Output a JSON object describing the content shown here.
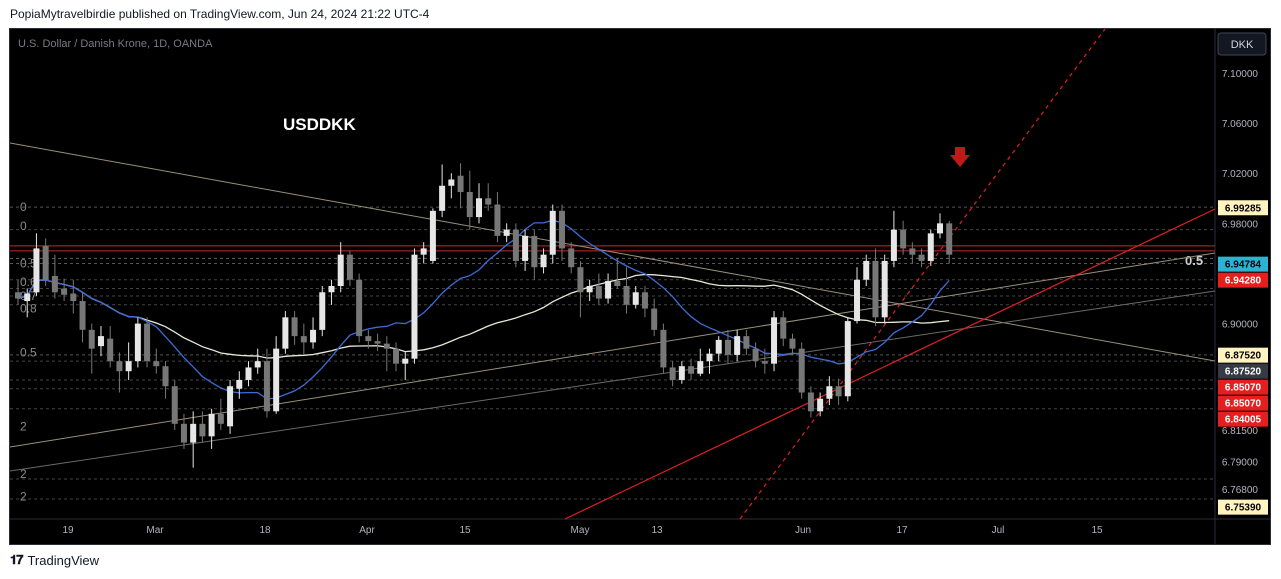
{
  "header": {
    "published_line": "PopiaMytravelbirdie published on TradingView.com, Jun 24, 2024 21:22 UTC-4"
  },
  "footer": {
    "brand": "TradingView"
  },
  "chart_data": {
    "type": "candlestick",
    "symbol_line": "U.S. Dollar / Danish Krone, 1D, OANDA",
    "annotation": "USDDKK",
    "currency_button": "DKK",
    "y_ticks": [
      "7.10000",
      "7.06000",
      "7.02000",
      "6.98000",
      "6.90000",
      "6.81500",
      "6.79000",
      "6.76800"
    ],
    "y_tick_values": [
      7.1,
      7.06,
      7.02,
      6.98,
      6.9,
      6.815,
      6.79,
      6.768
    ],
    "x_ticks": [
      "19",
      "Mar",
      "18",
      "Apr",
      "15",
      "May",
      "13",
      "Jun",
      "17",
      "Jul",
      "15"
    ],
    "price_tags": [
      {
        "label": "6.99285",
        "value": 6.99285,
        "bg": "#fff3c0",
        "fg": "#000000"
      },
      {
        "label": "6.94784",
        "value": 6.94784,
        "bg": "#2bb3d1",
        "fg": "#000000"
      },
      {
        "label": "6.94280",
        "value": 6.9428,
        "bg": "#e51f1f",
        "fg": "#ffffff"
      },
      {
        "label": "6.87520",
        "value": 6.8752,
        "bg": "#fff3c0",
        "fg": "#000000"
      },
      {
        "label": "6.87520",
        "value": 6.8752,
        "bg": "#363a45",
        "fg": "#ffffff"
      },
      {
        "label": "6.85070",
        "value": 6.8507,
        "bg": "#e51f1f",
        "fg": "#ffffff"
      },
      {
        "label": "6.85070",
        "value": 6.8507,
        "bg": "#e51f1f",
        "fg": "#ffffff"
      },
      {
        "label": "6.84005",
        "value": 6.84005,
        "bg": "#e51f1f",
        "fg": "#ffffff"
      },
      {
        "label": "6.75390",
        "value": 6.7539,
        "bg": "#fff3c0",
        "fg": "#000000"
      }
    ],
    "fib_labels_left": [
      "0",
      "0",
      "0.5",
      "0.6",
      "0.7",
      "0.8",
      "0.5",
      "2",
      "2",
      "2"
    ],
    "fib_label_right": "0.5",
    "candles": [
      {
        "o": 6.925,
        "h": 6.935,
        "l": 6.915,
        "c": 6.92
      },
      {
        "o": 6.918,
        "h": 6.928,
        "l": 6.905,
        "c": 6.924
      },
      {
        "o": 6.925,
        "h": 6.972,
        "l": 6.922,
        "c": 6.96
      },
      {
        "o": 6.962,
        "h": 6.968,
        "l": 6.93,
        "c": 6.935
      },
      {
        "o": 6.938,
        "h": 6.955,
        "l": 6.92,
        "c": 6.925
      },
      {
        "o": 6.928,
        "h": 6.936,
        "l": 6.918,
        "c": 6.923
      },
      {
        "o": 6.924,
        "h": 6.935,
        "l": 6.908,
        "c": 6.918
      },
      {
        "o": 6.918,
        "h": 6.925,
        "l": 6.885,
        "c": 6.895
      },
      {
        "o": 6.895,
        "h": 6.9,
        "l": 6.86,
        "c": 6.88
      },
      {
        "o": 6.882,
        "h": 6.898,
        "l": 6.874,
        "c": 6.89
      },
      {
        "o": 6.888,
        "h": 6.898,
        "l": 6.865,
        "c": 6.87
      },
      {
        "o": 6.87,
        "h": 6.877,
        "l": 6.845,
        "c": 6.862
      },
      {
        "o": 6.862,
        "h": 6.885,
        "l": 6.855,
        "c": 6.87
      },
      {
        "o": 6.87,
        "h": 6.905,
        "l": 6.865,
        "c": 6.9
      },
      {
        "o": 6.9,
        "h": 6.905,
        "l": 6.865,
        "c": 6.87
      },
      {
        "o": 6.87,
        "h": 6.88,
        "l": 6.86,
        "c": 6.866
      },
      {
        "o": 6.866,
        "h": 6.87,
        "l": 6.84,
        "c": 6.85
      },
      {
        "o": 6.85,
        "h": 6.855,
        "l": 6.815,
        "c": 6.82
      },
      {
        "o": 6.82,
        "h": 6.828,
        "l": 6.8,
        "c": 6.805
      },
      {
        "o": 6.805,
        "h": 6.83,
        "l": 6.785,
        "c": 6.82
      },
      {
        "o": 6.82,
        "h": 6.83,
        "l": 6.805,
        "c": 6.81
      },
      {
        "o": 6.81,
        "h": 6.832,
        "l": 6.8,
        "c": 6.828
      },
      {
        "o": 6.828,
        "h": 6.84,
        "l": 6.815,
        "c": 6.82
      },
      {
        "o": 6.818,
        "h": 6.855,
        "l": 6.812,
        "c": 6.85
      },
      {
        "o": 6.848,
        "h": 6.862,
        "l": 6.84,
        "c": 6.855
      },
      {
        "o": 6.855,
        "h": 6.87,
        "l": 6.85,
        "c": 6.865
      },
      {
        "o": 6.865,
        "h": 6.88,
        "l": 6.86,
        "c": 6.87
      },
      {
        "o": 6.87,
        "h": 6.88,
        "l": 6.825,
        "c": 6.83
      },
      {
        "o": 6.83,
        "h": 6.89,
        "l": 6.828,
        "c": 6.88
      },
      {
        "o": 6.88,
        "h": 6.91,
        "l": 6.876,
        "c": 6.905
      },
      {
        "o": 6.905,
        "h": 6.91,
        "l": 6.883,
        "c": 6.89
      },
      {
        "o": 6.89,
        "h": 6.9,
        "l": 6.875,
        "c": 6.885
      },
      {
        "o": 6.885,
        "h": 6.905,
        "l": 6.88,
        "c": 6.895
      },
      {
        "o": 6.895,
        "h": 6.93,
        "l": 6.89,
        "c": 6.925
      },
      {
        "o": 6.925,
        "h": 6.935,
        "l": 6.915,
        "c": 6.93
      },
      {
        "o": 6.93,
        "h": 6.965,
        "l": 6.925,
        "c": 6.955
      },
      {
        "o": 6.955,
        "h": 6.958,
        "l": 6.93,
        "c": 6.935
      },
      {
        "o": 6.935,
        "h": 6.94,
        "l": 6.885,
        "c": 6.89
      },
      {
        "o": 6.89,
        "h": 6.895,
        "l": 6.88,
        "c": 6.886
      },
      {
        "o": 6.886,
        "h": 6.892,
        "l": 6.878,
        "c": 6.884
      },
      {
        "o": 6.884,
        "h": 6.89,
        "l": 6.862,
        "c": 6.88
      },
      {
        "o": 6.88,
        "h": 6.885,
        "l": 6.862,
        "c": 6.868
      },
      {
        "o": 6.868,
        "h": 6.878,
        "l": 6.855,
        "c": 6.872
      },
      {
        "o": 6.872,
        "h": 6.96,
        "l": 6.868,
        "c": 6.955
      },
      {
        "o": 6.955,
        "h": 6.965,
        "l": 6.948,
        "c": 6.96
      },
      {
        "o": 6.95,
        "h": 6.992,
        "l": 6.948,
        "c": 6.99
      },
      {
        "o": 6.99,
        "h": 7.027,
        "l": 6.985,
        "c": 7.01
      },
      {
        "o": 7.01,
        "h": 7.02,
        "l": 7.0,
        "c": 7.015
      },
      {
        "o": 7.018,
        "h": 7.028,
        "l": 6.992,
        "c": 7.005
      },
      {
        "o": 7.005,
        "h": 7.022,
        "l": 6.975,
        "c": 6.985
      },
      {
        "o": 6.985,
        "h": 7.012,
        "l": 6.98,
        "c": 7.0
      },
      {
        "o": 7.0,
        "h": 7.012,
        "l": 6.99,
        "c": 6.995
      },
      {
        "o": 6.995,
        "h": 7.005,
        "l": 6.965,
        "c": 6.97
      },
      {
        "o": 6.97,
        "h": 6.98,
        "l": 6.965,
        "c": 6.975
      },
      {
        "o": 6.975,
        "h": 6.98,
        "l": 6.945,
        "c": 6.95
      },
      {
        "o": 6.95,
        "h": 6.975,
        "l": 6.942,
        "c": 6.97
      },
      {
        "o": 6.97,
        "h": 6.975,
        "l": 6.935,
        "c": 6.945
      },
      {
        "o": 6.945,
        "h": 6.96,
        "l": 6.94,
        "c": 6.955
      },
      {
        "o": 6.955,
        "h": 6.995,
        "l": 6.948,
        "c": 6.99
      },
      {
        "o": 6.99,
        "h": 6.995,
        "l": 6.95,
        "c": 6.96
      },
      {
        "o": 6.96,
        "h": 6.965,
        "l": 6.94,
        "c": 6.945
      },
      {
        "o": 6.945,
        "h": 6.95,
        "l": 6.905,
        "c": 6.925
      },
      {
        "o": 6.925,
        "h": 6.935,
        "l": 6.918,
        "c": 6.93
      },
      {
        "o": 6.93,
        "h": 6.94,
        "l": 6.915,
        "c": 6.92
      },
      {
        "o": 6.92,
        "h": 6.94,
        "l": 6.916,
        "c": 6.934
      },
      {
        "o": 6.934,
        "h": 6.952,
        "l": 6.928,
        "c": 6.93
      },
      {
        "o": 6.93,
        "h": 6.945,
        "l": 6.908,
        "c": 6.915
      },
      {
        "o": 6.915,
        "h": 6.93,
        "l": 6.912,
        "c": 6.925
      },
      {
        "o": 6.925,
        "h": 6.93,
        "l": 6.905,
        "c": 6.912
      },
      {
        "o": 6.912,
        "h": 6.92,
        "l": 6.89,
        "c": 6.895
      },
      {
        "o": 6.895,
        "h": 6.9,
        "l": 6.86,
        "c": 6.865
      },
      {
        "o": 6.865,
        "h": 6.87,
        "l": 6.85,
        "c": 6.855
      },
      {
        "o": 6.855,
        "h": 6.87,
        "l": 6.852,
        "c": 6.866
      },
      {
        "o": 6.866,
        "h": 6.872,
        "l": 6.855,
        "c": 6.86
      },
      {
        "o": 6.86,
        "h": 6.88,
        "l": 6.858,
        "c": 6.87
      },
      {
        "o": 6.87,
        "h": 6.88,
        "l": 6.86,
        "c": 6.876
      },
      {
        "o": 6.876,
        "h": 6.89,
        "l": 6.87,
        "c": 6.887
      },
      {
        "o": 6.887,
        "h": 6.895,
        "l": 6.868,
        "c": 6.875
      },
      {
        "o": 6.875,
        "h": 6.895,
        "l": 6.87,
        "c": 6.89
      },
      {
        "o": 6.89,
        "h": 6.895,
        "l": 6.875,
        "c": 6.88
      },
      {
        "o": 6.88,
        "h": 6.885,
        "l": 6.865,
        "c": 6.87
      },
      {
        "o": 6.87,
        "h": 6.88,
        "l": 6.86,
        "c": 6.868
      },
      {
        "o": 6.868,
        "h": 6.91,
        "l": 6.862,
        "c": 6.905
      },
      {
        "o": 6.905,
        "h": 6.91,
        "l": 6.882,
        "c": 6.888
      },
      {
        "o": 6.888,
        "h": 6.892,
        "l": 6.875,
        "c": 6.88
      },
      {
        "o": 6.88,
        "h": 6.885,
        "l": 6.84,
        "c": 6.845
      },
      {
        "o": 6.845,
        "h": 6.85,
        "l": 6.825,
        "c": 6.83
      },
      {
        "o": 6.83,
        "h": 6.845,
        "l": 6.826,
        "c": 6.84
      },
      {
        "o": 6.84,
        "h": 6.858,
        "l": 6.835,
        "c": 6.85
      },
      {
        "o": 6.85,
        "h": 6.856,
        "l": 6.835,
        "c": 6.842
      },
      {
        "o": 6.842,
        "h": 6.905,
        "l": 6.838,
        "c": 6.902
      },
      {
        "o": 6.902,
        "h": 6.945,
        "l": 6.9,
        "c": 6.935
      },
      {
        "o": 6.935,
        "h": 6.955,
        "l": 6.93,
        "c": 6.95
      },
      {
        "o": 6.95,
        "h": 6.96,
        "l": 6.898,
        "c": 6.905
      },
      {
        "o": 6.905,
        "h": 6.955,
        "l": 6.9,
        "c": 6.95
      },
      {
        "o": 6.95,
        "h": 6.99,
        "l": 6.945,
        "c": 6.975
      },
      {
        "o": 6.975,
        "h": 6.982,
        "l": 6.955,
        "c": 6.96
      },
      {
        "o": 6.96,
        "h": 6.965,
        "l": 6.948,
        "c": 6.955
      },
      {
        "o": 6.955,
        "h": 6.96,
        "l": 6.945,
        "c": 6.95
      },
      {
        "o": 6.95,
        "h": 6.975,
        "l": 6.946,
        "c": 6.972
      },
      {
        "o": 6.972,
        "h": 6.988,
        "l": 6.968,
        "c": 6.98
      },
      {
        "o": 6.98,
        "h": 6.982,
        "l": 6.948,
        "c": 6.955
      }
    ]
  }
}
